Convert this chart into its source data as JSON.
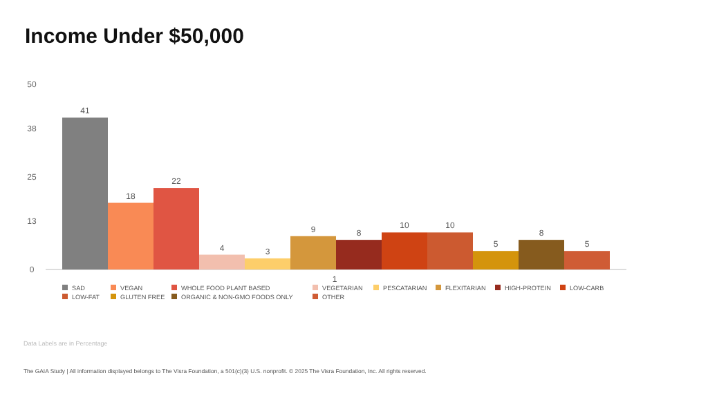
{
  "chart_data": {
    "type": "bar",
    "title": "Income Under $50,000",
    "categories": [
      null
    ],
    "series": [
      {
        "name": "SAD",
        "color": "#808080",
        "values": [
          41
        ]
      },
      {
        "name": "VEGAN",
        "color": "#f98a55",
        "values": [
          18
        ]
      },
      {
        "name": "WHOLE FOOD PLANT BASED",
        "color": "#e05543",
        "values": [
          22
        ]
      },
      {
        "name": "VEGETARIAN",
        "color": "#f2bfae",
        "values": [
          4
        ]
      },
      {
        "name": "PESCATARIAN",
        "color": "#fdce6a",
        "values": [
          3
        ]
      },
      {
        "name": "FLEXITARIAN",
        "color": "#d4973c",
        "values": [
          9
        ]
      },
      {
        "name": "HIGH-PROTEIN",
        "color": "#962b1e",
        "values": [
          8
        ]
      },
      {
        "name": "LOW-CARB",
        "color": "#cf4313",
        "values": [
          10
        ]
      },
      {
        "name": "LOW-FAT",
        "color": "#cc5a30",
        "values": [
          10
        ]
      },
      {
        "name": "GLUTEN FREE",
        "color": "#d4940c",
        "values": [
          5
        ]
      },
      {
        "name": "ORGANIC & NON-GMO FOODS ONLY",
        "color": "#865b1e",
        "values": [
          8
        ]
      },
      {
        "name": "OTHER",
        "color": "#cf5c35",
        "values": [
          5
        ]
      }
    ],
    "ylim": [
      0,
      50
    ],
    "yticks": [
      0,
      13,
      25,
      38,
      50
    ],
    "tick_labels": "y",
    "grid": false,
    "legend": "bottom",
    "data_labels": true,
    "annotations": [
      "1",
      "Data Labels are in Percentage",
      "The GAIA Study | All information displayed belongs to The Visra Foundation, a 501(c)(3) U.S. nonprofit. © 2025 The Visra Foundation, Inc. All rights reserved."
    ]
  }
}
